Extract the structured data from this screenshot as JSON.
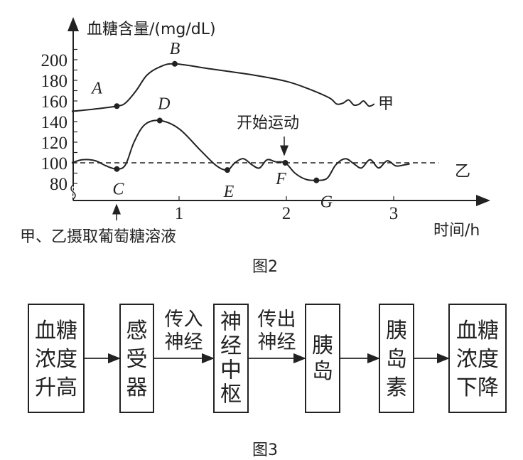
{
  "chart_data": {
    "type": "line",
    "ylabel": "血糖含量/(mg/dL)",
    "xlabel": "时间/h",
    "xticks": [
      1,
      2,
      3
    ],
    "yticks": [
      80,
      100,
      120,
      140,
      160,
      180,
      200
    ],
    "series": [
      {
        "name": "甲",
        "points": [
          [
            0,
            150
          ],
          [
            0.2,
            152
          ],
          [
            0.42,
            155
          ],
          [
            0.5,
            158
          ],
          [
            0.6,
            170
          ],
          [
            0.7,
            185
          ],
          [
            0.82,
            193
          ],
          [
            0.96,
            196
          ],
          [
            1.3,
            191
          ],
          [
            1.7,
            185
          ],
          [
            2.0,
            179
          ],
          [
            2.2,
            172
          ],
          [
            2.4,
            163
          ],
          [
            2.47,
            157
          ],
          [
            2.53,
            158
          ],
          [
            2.58,
            161
          ],
          [
            2.63,
            156
          ],
          [
            2.68,
            157
          ],
          [
            2.72,
            160
          ],
          [
            2.77,
            155
          ],
          [
            2.82,
            157
          ]
        ]
      },
      {
        "name": "乙",
        "points": [
          [
            0,
            100
          ],
          [
            0.1,
            103
          ],
          [
            0.22,
            102
          ],
          [
            0.32,
            97
          ],
          [
            0.42,
            94
          ],
          [
            0.5,
            98
          ],
          [
            0.58,
            120
          ],
          [
            0.68,
            137
          ],
          [
            0.82,
            141
          ],
          [
            1.0,
            133
          ],
          [
            1.2,
            112
          ],
          [
            1.35,
            97
          ],
          [
            1.45,
            93
          ],
          [
            1.52,
            100
          ],
          [
            1.6,
            104
          ],
          [
            1.68,
            98
          ],
          [
            1.75,
            95
          ],
          [
            1.82,
            103
          ],
          [
            1.9,
            101
          ],
          [
            1.99,
            100
          ],
          [
            2.08,
            90
          ],
          [
            2.18,
            84
          ],
          [
            2.28,
            83
          ],
          [
            2.38,
            85
          ],
          [
            2.46,
            98
          ],
          [
            2.55,
            104
          ],
          [
            2.63,
            99
          ],
          [
            2.7,
            95
          ],
          [
            2.78,
            103
          ],
          [
            2.86,
            95
          ],
          [
            2.94,
            102
          ],
          [
            3.02,
            97
          ],
          [
            3.1,
            98
          ],
          [
            3.15,
            99
          ]
        ]
      }
    ],
    "reference_line": 100,
    "points": [
      {
        "label": "A",
        "x": 0.42,
        "y": 155
      },
      {
        "label": "B",
        "x": 0.96,
        "y": 196
      },
      {
        "label": "C",
        "x": 0.42,
        "y": 94
      },
      {
        "label": "D",
        "x": 0.82,
        "y": 141
      },
      {
        "label": "E",
        "x": 1.45,
        "y": 93
      },
      {
        "label": "F",
        "x": 1.99,
        "y": 100
      },
      {
        "label": "G",
        "x": 2.28,
        "y": 83
      }
    ],
    "annotations": {
      "exercise": "开始运动",
      "glucose_intake": "甲、乙摄取葡萄糖溶液"
    },
    "caption": "图2"
  },
  "flow": {
    "boxes": [
      {
        "lines": [
          "血糖",
          "浓度",
          "升高"
        ]
      },
      {
        "lines": [
          "感",
          "受",
          "器"
        ]
      },
      {
        "lines": [
          "神",
          "经",
          "中",
          "枢"
        ]
      },
      {
        "lines": [
          "胰",
          "岛"
        ]
      },
      {
        "lines": [
          "胰",
          "岛",
          "素"
        ]
      },
      {
        "lines": [
          "血糖",
          "浓度",
          "下降"
        ]
      }
    ],
    "arrow_labels": [
      "",
      "传入神经",
      "传出神经",
      "",
      ""
    ],
    "caption": "图3"
  }
}
